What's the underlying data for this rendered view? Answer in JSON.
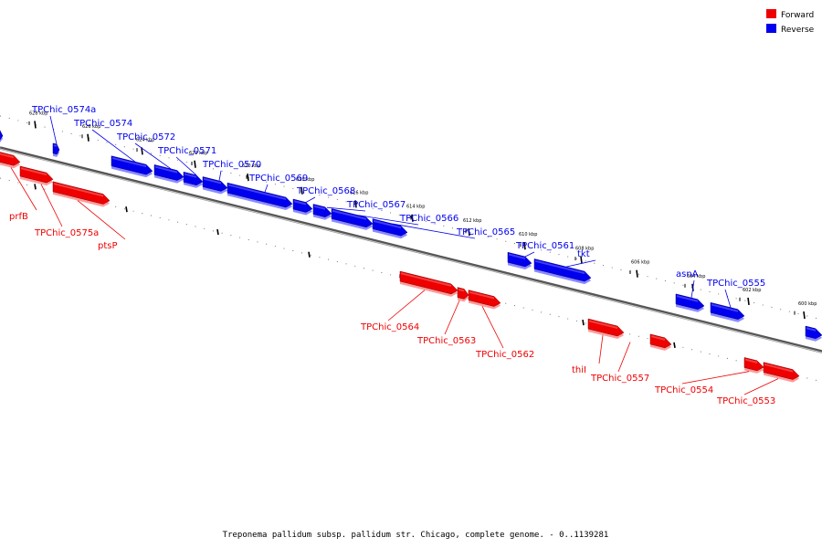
{
  "legend": {
    "forward": {
      "label": "Forward",
      "color": "#ee0000"
    },
    "reverse": {
      "label": "Reverse",
      "color": "#0000ee"
    }
  },
  "caption": "Treponema pallidum subsp. pallidum str. Chicago, complete genome. - 0..1139281",
  "ticks": [
    "628 kbp",
    "626 kbp",
    "624 kbp",
    "622 kbp",
    "620 kbp",
    "618 kbp",
    "616 kbp",
    "614 kbp",
    "612 kbp",
    "610 kbp",
    "608 kbp",
    "606 kbp",
    "604 kbp",
    "602 kbp",
    "600 kbp"
  ],
  "genes": [
    {
      "name": "prfB",
      "strand": "forward"
    },
    {
      "name": "TPChic_0575a",
      "strand": "forward"
    },
    {
      "name": "ptsP",
      "strand": "forward"
    },
    {
      "name": "TPChic_0574a",
      "strand": "reverse"
    },
    {
      "name": "TPChic_0574",
      "strand": "reverse"
    },
    {
      "name": "TPChic_0572",
      "strand": "reverse"
    },
    {
      "name": "TPChic_0571",
      "strand": "reverse"
    },
    {
      "name": "TPChic_0570",
      "strand": "reverse"
    },
    {
      "name": "TPChic_0569",
      "strand": "reverse"
    },
    {
      "name": "TPChic_0568",
      "strand": "reverse"
    },
    {
      "name": "TPChic_0567",
      "strand": "reverse"
    },
    {
      "name": "TPChic_0566",
      "strand": "reverse"
    },
    {
      "name": "TPChic_0565",
      "strand": "reverse"
    },
    {
      "name": "TPChic_0564",
      "strand": "forward"
    },
    {
      "name": "TPChic_0563",
      "strand": "forward"
    },
    {
      "name": "TPChic_0562",
      "strand": "forward"
    },
    {
      "name": "TPChic_0561",
      "strand": "reverse"
    },
    {
      "name": "tkt",
      "strand": "reverse"
    },
    {
      "name": "thiI",
      "strand": "forward"
    },
    {
      "name": "TPChic_0557",
      "strand": "forward"
    },
    {
      "name": "asnA",
      "strand": "reverse"
    },
    {
      "name": "TPChic_0555",
      "strand": "reverse"
    },
    {
      "name": "TPChic_0554",
      "strand": "forward"
    },
    {
      "name": "TPChic_0553",
      "strand": "forward"
    }
  ]
}
